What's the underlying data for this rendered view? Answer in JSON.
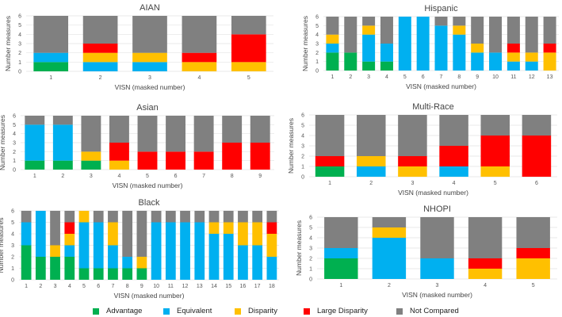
{
  "categories_legend": [
    "Advantage",
    "Equivalent",
    "Disparity",
    "Large Disparity",
    "Not Compared"
  ],
  "colors": {
    "Advantage": "#00B050",
    "Equivalent": "#00B0F0",
    "Disparity": "#FFC000",
    "Large Disparity": "#FF0000",
    "Not Compared": "#808080"
  },
  "chart_data": [
    {
      "type": "bar",
      "stacked": true,
      "title": "AIAN",
      "xlabel": "VISN (masked number)",
      "ylabel": "Number measures",
      "ylim": [
        0,
        6
      ],
      "yticks": [
        "0",
        "1",
        "2",
        "3",
        "4",
        "5",
        "6"
      ],
      "grid": true,
      "categories": [
        "1",
        "2",
        "3",
        "4",
        "5"
      ],
      "series": [
        {
          "name": "Advantage",
          "values": [
            1,
            0,
            0,
            0,
            0
          ]
        },
        {
          "name": "Equivalent",
          "values": [
            1,
            1,
            1,
            0,
            0
          ]
        },
        {
          "name": "Disparity",
          "values": [
            0,
            1,
            1,
            1,
            1
          ]
        },
        {
          "name": "Large Disparity",
          "values": [
            0,
            1,
            0,
            1,
            3
          ]
        },
        {
          "name": "Not Compared",
          "values": [
            4,
            3,
            4,
            4,
            2
          ]
        }
      ]
    },
    {
      "type": "bar",
      "stacked": true,
      "title": "Hispanic",
      "xlabel": "VISN (masked number)",
      "ylabel": "Number measures",
      "ylim": [
        0,
        6
      ],
      "yticks": [
        "0",
        "1",
        "2",
        "3",
        "4",
        "5",
        "6"
      ],
      "grid": true,
      "categories": [
        "1",
        "2",
        "3",
        "4",
        "5",
        "6",
        "7",
        "8",
        "9",
        "10",
        "11",
        "12",
        "13"
      ],
      "series": [
        {
          "name": "Advantage",
          "values": [
            2,
            2,
            1,
            1,
            0,
            0,
            0,
            0,
            0,
            0,
            0,
            0,
            0
          ]
        },
        {
          "name": "Equivalent",
          "values": [
            1,
            0,
            3,
            2,
            6,
            6,
            5,
            4,
            2,
            2,
            1,
            1,
            0
          ]
        },
        {
          "name": "Disparity",
          "values": [
            1,
            0,
            1,
            0,
            0,
            0,
            0,
            1,
            1,
            0,
            1,
            1,
            2
          ]
        },
        {
          "name": "Large Disparity",
          "values": [
            0,
            0,
            0,
            0,
            0,
            0,
            0,
            0,
            0,
            0,
            1,
            0,
            1
          ]
        },
        {
          "name": "Not Compared",
          "values": [
            2,
            4,
            1,
            3,
            0,
            0,
            1,
            1,
            3,
            4,
            3,
            4,
            3
          ]
        }
      ]
    },
    {
      "type": "bar",
      "stacked": true,
      "title": "Asian",
      "xlabel": "VISN (masked number)",
      "ylabel": "Number measures",
      "ylim": [
        0,
        6
      ],
      "yticks": [
        "0",
        "1",
        "2",
        "3",
        "4",
        "5",
        "6"
      ],
      "grid": true,
      "categories": [
        "1",
        "2",
        "3",
        "4",
        "5",
        "6",
        "7",
        "8",
        "9"
      ],
      "series": [
        {
          "name": "Advantage",
          "values": [
            1,
            1,
            1,
            0,
            0,
            0,
            0,
            0,
            0
          ]
        },
        {
          "name": "Equivalent",
          "values": [
            4,
            4,
            0,
            0,
            0,
            0,
            0,
            0,
            0
          ]
        },
        {
          "name": "Disparity",
          "values": [
            0,
            0,
            1,
            1,
            0,
            0,
            0,
            0,
            0
          ]
        },
        {
          "name": "Large Disparity",
          "values": [
            0,
            0,
            0,
            2,
            2,
            2,
            2,
            3,
            3
          ]
        },
        {
          "name": "Not Compared",
          "values": [
            1,
            1,
            4,
            3,
            4,
            4,
            4,
            3,
            3
          ]
        }
      ]
    },
    {
      "type": "bar",
      "stacked": true,
      "title": "Multi-Race",
      "xlabel": "VISN (masked number)",
      "ylabel": "Number measures",
      "ylim": [
        0,
        6
      ],
      "yticks": [
        "0",
        "1",
        "2",
        "3",
        "4",
        "5",
        "6"
      ],
      "grid": true,
      "categories": [
        "1",
        "2",
        "3",
        "4",
        "5",
        "6"
      ],
      "series": [
        {
          "name": "Advantage",
          "values": [
            1,
            0,
            0,
            0,
            0,
            0
          ]
        },
        {
          "name": "Equivalent",
          "values": [
            0,
            1,
            0,
            1,
            0,
            0
          ]
        },
        {
          "name": "Disparity",
          "values": [
            0,
            1,
            1,
            0,
            1,
            0
          ]
        },
        {
          "name": "Large Disparity",
          "values": [
            1,
            0,
            1,
            2,
            3,
            4
          ]
        },
        {
          "name": "Not Compared",
          "values": [
            4,
            4,
            4,
            3,
            2,
            2
          ]
        }
      ]
    },
    {
      "type": "bar",
      "stacked": true,
      "title": "Black",
      "xlabel": "VISN (masked number)",
      "ylabel": "Number measures",
      "ylim": [
        0,
        6
      ],
      "yticks": [
        "0",
        "1",
        "2",
        "3",
        "4",
        "5",
        "6"
      ],
      "grid": true,
      "categories": [
        "1",
        "2",
        "3",
        "4",
        "5",
        "6",
        "7",
        "8",
        "9",
        "10",
        "11",
        "12",
        "13",
        "14",
        "15",
        "16",
        "17",
        "18"
      ],
      "series": [
        {
          "name": "Advantage",
          "values": [
            3,
            2,
            2,
            2,
            1,
            1,
            1,
            1,
            1,
            0,
            0,
            0,
            0,
            0,
            0,
            0,
            0,
            0
          ]
        },
        {
          "name": "Equivalent",
          "values": [
            2,
            4,
            0,
            1,
            4,
            4,
            2,
            1,
            0,
            5,
            5,
            5,
            5,
            4,
            4,
            3,
            3,
            2
          ]
        },
        {
          "name": "Disparity",
          "values": [
            0,
            0,
            1,
            1,
            1,
            0,
            2,
            0,
            1,
            0,
            0,
            0,
            0,
            1,
            1,
            2,
            2,
            2
          ]
        },
        {
          "name": "Large Disparity",
          "values": [
            0,
            0,
            0,
            1,
            0,
            0,
            0,
            0,
            0,
            0,
            0,
            0,
            0,
            0,
            0,
            0,
            0,
            1
          ]
        },
        {
          "name": "Not Compared",
          "values": [
            1,
            0,
            3,
            1,
            0,
            1,
            1,
            4,
            4,
            1,
            1,
            1,
            1,
            1,
            1,
            1,
            1,
            1
          ]
        }
      ]
    },
    {
      "type": "bar",
      "stacked": true,
      "title": "NHOPI",
      "xlabel": "VISN (masked number)",
      "ylabel": "Number measures",
      "ylim": [
        0,
        6
      ],
      "yticks": [
        "0",
        "1",
        "2",
        "3",
        "4",
        "5",
        "6"
      ],
      "grid": true,
      "categories": [
        "1",
        "2",
        "3",
        "4",
        "5"
      ],
      "series": [
        {
          "name": "Advantage",
          "values": [
            2,
            0,
            0,
            0,
            0
          ]
        },
        {
          "name": "Equivalent",
          "values": [
            1,
            4,
            2,
            0,
            0
          ]
        },
        {
          "name": "Disparity",
          "values": [
            0,
            1,
            0,
            1,
            2
          ]
        },
        {
          "name": "Large Disparity",
          "values": [
            0,
            0,
            0,
            1,
            1
          ]
        },
        {
          "name": "Not Compared",
          "values": [
            3,
            1,
            4,
            4,
            3
          ]
        }
      ]
    }
  ]
}
